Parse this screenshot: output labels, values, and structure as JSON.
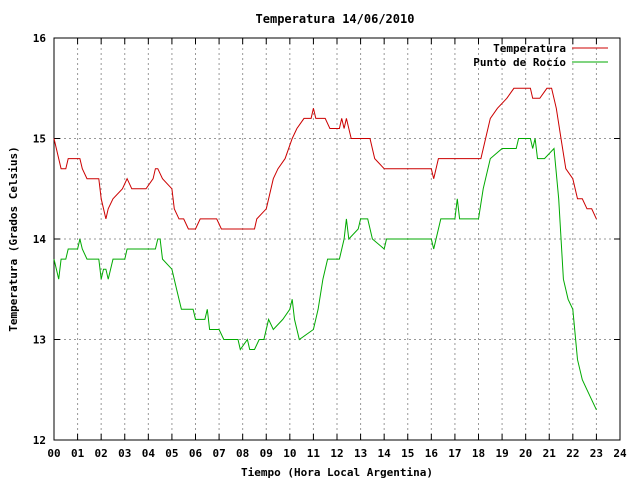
{
  "chart_data": {
    "type": "line",
    "title": "Temperatura 14/06/2010",
    "xlabel": "Tiempo (Hora Local Argentina)",
    "ylabel": "Temperatura (Grados Celsius)",
    "xlim": [
      0,
      24
    ],
    "ylim": [
      12,
      16
    ],
    "x_ticks": [
      "00",
      "01",
      "02",
      "03",
      "04",
      "05",
      "06",
      "07",
      "08",
      "09",
      "10",
      "11",
      "12",
      "13",
      "14",
      "15",
      "16",
      "17",
      "18",
      "19",
      "20",
      "21",
      "22",
      "23",
      "24"
    ],
    "y_ticks": [
      "12",
      "13",
      "14",
      "15",
      "16"
    ],
    "grid": true,
    "legend_position": "top-right",
    "series": [
      {
        "name": "Temperatura",
        "color": "#cc0000",
        "points": [
          [
            0,
            15
          ],
          [
            0.2,
            14.8
          ],
          [
            0.3,
            14.7
          ],
          [
            0.5,
            14.7
          ],
          [
            0.6,
            14.8
          ],
          [
            1.1,
            14.8
          ],
          [
            1.2,
            14.7
          ],
          [
            1.4,
            14.6
          ],
          [
            1.9,
            14.6
          ],
          [
            2.0,
            14.4
          ],
          [
            2.2,
            14.2
          ],
          [
            2.3,
            14.3
          ],
          [
            2.5,
            14.4
          ],
          [
            2.9,
            14.5
          ],
          [
            3.1,
            14.6
          ],
          [
            3.3,
            14.5
          ],
          [
            3.9,
            14.5
          ],
          [
            4.2,
            14.6
          ],
          [
            4.3,
            14.7
          ],
          [
            4.4,
            14.7
          ],
          [
            4.6,
            14.6
          ],
          [
            5.0,
            14.5
          ],
          [
            5.1,
            14.3
          ],
          [
            5.3,
            14.2
          ],
          [
            5.5,
            14.2
          ],
          [
            5.7,
            14.1
          ],
          [
            6.0,
            14.1
          ],
          [
            6.2,
            14.2
          ],
          [
            6.9,
            14.2
          ],
          [
            7.1,
            14.1
          ],
          [
            8.5,
            14.1
          ],
          [
            8.6,
            14.2
          ],
          [
            9.0,
            14.3
          ],
          [
            9.3,
            14.6
          ],
          [
            9.5,
            14.7
          ],
          [
            9.8,
            14.8
          ],
          [
            10.1,
            15.0
          ],
          [
            10.3,
            15.1
          ],
          [
            10.6,
            15.2
          ],
          [
            10.9,
            15.2
          ],
          [
            11.0,
            15.3
          ],
          [
            11.1,
            15.2
          ],
          [
            11.5,
            15.2
          ],
          [
            11.7,
            15.1
          ],
          [
            12.1,
            15.1
          ],
          [
            12.2,
            15.2
          ],
          [
            12.3,
            15.1
          ],
          [
            12.4,
            15.2
          ],
          [
            12.5,
            15.1
          ],
          [
            12.6,
            15.0
          ],
          [
            13.4,
            15.0
          ],
          [
            13.6,
            14.8
          ],
          [
            14.0,
            14.7
          ],
          [
            16.0,
            14.7
          ],
          [
            16.1,
            14.6
          ],
          [
            16.3,
            14.8
          ],
          [
            18.1,
            14.8
          ],
          [
            18.3,
            15.0
          ],
          [
            18.5,
            15.2
          ],
          [
            18.8,
            15.3
          ],
          [
            19.2,
            15.4
          ],
          [
            19.5,
            15.5
          ],
          [
            20.2,
            15.5
          ],
          [
            20.3,
            15.4
          ],
          [
            20.6,
            15.4
          ],
          [
            20.9,
            15.5
          ],
          [
            21.1,
            15.5
          ],
          [
            21.3,
            15.3
          ],
          [
            21.5,
            15.0
          ],
          [
            21.7,
            14.7
          ],
          [
            22.0,
            14.6
          ],
          [
            22.2,
            14.4
          ],
          [
            22.4,
            14.4
          ],
          [
            22.6,
            14.3
          ],
          [
            22.8,
            14.3
          ],
          [
            23.0,
            14.2
          ]
        ]
      },
      {
        "name": "Punto de Rocío",
        "color": "#00aa00",
        "points": [
          [
            0,
            13.8
          ],
          [
            0.1,
            13.7
          ],
          [
            0.2,
            13.6
          ],
          [
            0.3,
            13.8
          ],
          [
            0.5,
            13.8
          ],
          [
            0.6,
            13.9
          ],
          [
            1.0,
            13.9
          ],
          [
            1.1,
            14.0
          ],
          [
            1.2,
            13.9
          ],
          [
            1.4,
            13.8
          ],
          [
            1.9,
            13.8
          ],
          [
            2.0,
            13.6
          ],
          [
            2.1,
            13.7
          ],
          [
            2.2,
            13.7
          ],
          [
            2.3,
            13.6
          ],
          [
            2.5,
            13.8
          ],
          [
            3.0,
            13.8
          ],
          [
            3.1,
            13.9
          ],
          [
            4.3,
            13.9
          ],
          [
            4.4,
            14.0
          ],
          [
            4.5,
            14.0
          ],
          [
            4.6,
            13.8
          ],
          [
            5.0,
            13.7
          ],
          [
            5.2,
            13.5
          ],
          [
            5.4,
            13.3
          ],
          [
            5.9,
            13.3
          ],
          [
            6.0,
            13.2
          ],
          [
            6.4,
            13.2
          ],
          [
            6.5,
            13.3
          ],
          [
            6.6,
            13.1
          ],
          [
            7.0,
            13.1
          ],
          [
            7.2,
            13.0
          ],
          [
            7.8,
            13.0
          ],
          [
            7.9,
            12.9
          ],
          [
            8.2,
            13.0
          ],
          [
            8.3,
            12.9
          ],
          [
            8.5,
            12.9
          ],
          [
            8.7,
            13.0
          ],
          [
            8.9,
            13.0
          ],
          [
            9.1,
            13.2
          ],
          [
            9.3,
            13.1
          ],
          [
            9.7,
            13.2
          ],
          [
            10.0,
            13.3
          ],
          [
            10.1,
            13.4
          ],
          [
            10.2,
            13.2
          ],
          [
            10.4,
            13.0
          ],
          [
            11.0,
            13.1
          ],
          [
            11.2,
            13.3
          ],
          [
            11.4,
            13.6
          ],
          [
            11.6,
            13.8
          ],
          [
            12.1,
            13.8
          ],
          [
            12.3,
            14.0
          ],
          [
            12.4,
            14.2
          ],
          [
            12.5,
            14.0
          ],
          [
            12.9,
            14.1
          ],
          [
            13.0,
            14.2
          ],
          [
            13.3,
            14.2
          ],
          [
            13.5,
            14.0
          ],
          [
            14.0,
            13.9
          ],
          [
            14.1,
            14.0
          ],
          [
            16.0,
            14.0
          ],
          [
            16.1,
            13.9
          ],
          [
            16.4,
            14.2
          ],
          [
            17.0,
            14.2
          ],
          [
            17.1,
            14.4
          ],
          [
            17.2,
            14.2
          ],
          [
            18.0,
            14.2
          ],
          [
            18.2,
            14.5
          ],
          [
            18.5,
            14.8
          ],
          [
            19.0,
            14.9
          ],
          [
            19.6,
            14.9
          ],
          [
            19.7,
            15.0
          ],
          [
            20.2,
            15.0
          ],
          [
            20.3,
            14.9
          ],
          [
            20.4,
            15.0
          ],
          [
            20.5,
            14.8
          ],
          [
            20.8,
            14.8
          ],
          [
            21.2,
            14.9
          ],
          [
            21.4,
            14.4
          ],
          [
            21.6,
            13.6
          ],
          [
            21.8,
            13.4
          ],
          [
            22.0,
            13.3
          ],
          [
            22.2,
            12.8
          ],
          [
            22.4,
            12.6
          ],
          [
            22.6,
            12.5
          ],
          [
            23.0,
            12.3
          ]
        ]
      }
    ]
  }
}
